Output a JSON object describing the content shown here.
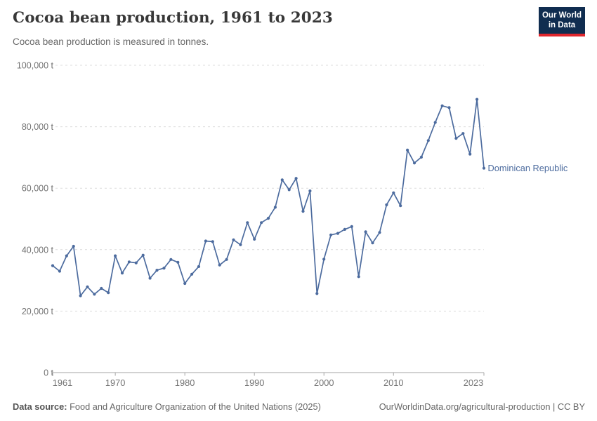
{
  "header": {
    "title": "Cocoa bean production, 1961 to 2023",
    "subtitle": "Cocoa bean production is measured in tonnes."
  },
  "logo": {
    "line1": "Our World",
    "line2": "in Data",
    "bg_color": "#102d50",
    "accent_color": "#e0262d"
  },
  "footer": {
    "source_label": "Data source:",
    "source_text": " Food and Agriculture Organization of the United Nations (2025)",
    "link_text": "OurWorldinData.org/agricultural-production | CC BY"
  },
  "chart_data": {
    "type": "line",
    "title": "Cocoa bean production, 1961 to 2023",
    "unit": "tonnes",
    "xlim": [
      1961,
      2023
    ],
    "ylim": [
      0,
      100000
    ],
    "yticks": [
      0,
      20000,
      40000,
      60000,
      80000,
      100000
    ],
    "ytick_labels": [
      "0 t",
      "20,000 t",
      "40,000 t",
      "60,000 t",
      "80,000 t",
      "100,000 t"
    ],
    "xticks": [
      1961,
      1970,
      1980,
      1990,
      2000,
      2010,
      2023
    ],
    "xtick_labels": [
      "1961",
      "1970",
      "1980",
      "1990",
      "2000",
      "2010",
      "2023"
    ],
    "grid": "horizontal-dashed",
    "legend_position": "end-of-line-label",
    "series": [
      {
        "name": "Dominican Republic",
        "color": "#4C6B9E",
        "x": [
          1961,
          1962,
          1963,
          1964,
          1965,
          1966,
          1967,
          1968,
          1969,
          1970,
          1971,
          1972,
          1973,
          1974,
          1975,
          1976,
          1977,
          1978,
          1979,
          1980,
          1981,
          1982,
          1983,
          1984,
          1985,
          1986,
          1987,
          1988,
          1989,
          1990,
          1991,
          1992,
          1993,
          1994,
          1995,
          1996,
          1997,
          1998,
          1999,
          2000,
          2001,
          2002,
          2003,
          2004,
          2005,
          2006,
          2007,
          2008,
          2009,
          2010,
          2011,
          2012,
          2013,
          2014,
          2015,
          2016,
          2017,
          2018,
          2019,
          2020,
          2021,
          2022,
          2023
        ],
        "values": [
          34800,
          33000,
          38000,
          41100,
          25000,
          27900,
          25500,
          27400,
          26000,
          38000,
          32400,
          36000,
          35700,
          38200,
          30700,
          33300,
          34000,
          36800,
          35900,
          29000,
          32000,
          34500,
          42800,
          42600,
          35000,
          36800,
          43200,
          41600,
          48800,
          43400,
          48800,
          50200,
          53800,
          62700,
          59500,
          63200,
          52500,
          59100,
          25700,
          36900,
          44800,
          45300,
          46600,
          47500,
          31200,
          45800,
          42200,
          45600,
          54600,
          58500,
          54300,
          72400,
          68200,
          70100,
          75500,
          81400,
          86800,
          86200,
          76200,
          77800,
          71100,
          88900,
          66500
        ]
      }
    ]
  }
}
